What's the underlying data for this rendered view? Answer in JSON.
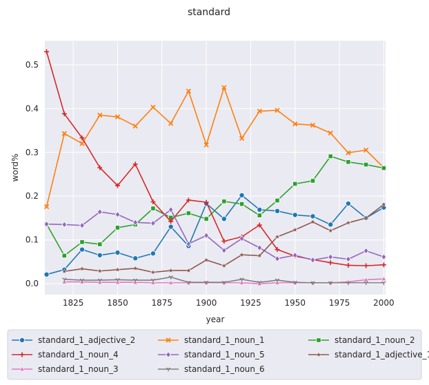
{
  "chart_data": {
    "type": "line",
    "title": "standard",
    "xlabel": "year",
    "ylabel": "word%",
    "xlim": [
      1809,
      2001
    ],
    "ylim": [
      -0.025,
      0.555
    ],
    "xticks": [
      1825,
      1850,
      1875,
      1900,
      1925,
      1950,
      1975,
      2000
    ],
    "yticks": [
      0.0,
      0.1,
      0.2,
      0.3,
      0.4,
      0.5
    ],
    "ytick_labels": [
      "0.0",
      "0.1",
      "0.2",
      "0.3",
      "0.4",
      "0.5"
    ],
    "grid": true,
    "legend_placement": "bottom",
    "series": [
      {
        "name": "standard_1_adjective_2",
        "color": "#1f77b4",
        "marker": "circle",
        "x": [
          1810,
          1820,
          1830,
          1840,
          1850,
          1860,
          1870,
          1880,
          1890,
          1900,
          1910,
          1920,
          1930,
          1940,
          1950,
          1960,
          1970,
          1980,
          1990,
          2000
        ],
        "y": [
          0.021,
          0.032,
          0.078,
          0.065,
          0.071,
          0.058,
          0.069,
          0.13,
          0.086,
          0.183,
          0.148,
          0.202,
          0.169,
          0.166,
          0.157,
          0.154,
          0.135,
          0.183,
          0.15,
          0.174
        ]
      },
      {
        "name": "standard_1_noun_1",
        "color": "#ff7f0e",
        "marker": "x",
        "x": [
          1810,
          1820,
          1830,
          1840,
          1850,
          1860,
          1870,
          1880,
          1890,
          1900,
          1910,
          1920,
          1930,
          1940,
          1950,
          1960,
          1970,
          1980,
          1990,
          2000
        ],
        "y": [
          0.176,
          0.343,
          0.32,
          0.385,
          0.381,
          0.36,
          0.403,
          0.366,
          0.44,
          0.317,
          0.448,
          0.332,
          0.394,
          0.396,
          0.365,
          0.362,
          0.344,
          0.299,
          0.305,
          0.265
        ]
      },
      {
        "name": "standard_1_noun_2",
        "color": "#2ca02c",
        "marker": "square",
        "x": [
          1810,
          1820,
          1830,
          1840,
          1850,
          1860,
          1870,
          1880,
          1890,
          1900,
          1910,
          1920,
          1930,
          1940,
          1950,
          1960,
          1970,
          1980,
          1990,
          2000
        ],
        "y": [
          0.136,
          0.064,
          0.095,
          0.09,
          0.128,
          0.135,
          0.172,
          0.151,
          0.161,
          0.148,
          0.188,
          0.182,
          0.156,
          0.19,
          0.228,
          0.235,
          0.291,
          0.278,
          0.272,
          0.264
        ]
      },
      {
        "name": "standard_1_noun_4",
        "color": "#d62728",
        "marker": "plus",
        "x": [
          1810,
          1820,
          1830,
          1840,
          1850,
          1860,
          1870,
          1880,
          1890,
          1900,
          1910,
          1920,
          1930,
          1940,
          1950,
          1960,
          1970,
          1980,
          1990,
          2000
        ],
        "y": [
          0.53,
          0.388,
          0.333,
          0.265,
          0.224,
          0.273,
          0.187,
          0.142,
          0.191,
          0.186,
          0.097,
          0.107,
          0.134,
          0.078,
          0.063,
          0.055,
          0.048,
          0.042,
          0.041,
          0.043
        ]
      },
      {
        "name": "standard_1_noun_5",
        "color": "#9467bd",
        "marker": "diamond",
        "x": [
          1810,
          1820,
          1830,
          1840,
          1850,
          1860,
          1870,
          1880,
          1890,
          1900,
          1910,
          1920,
          1930,
          1940,
          1950,
          1960,
          1970,
          1980,
          1990,
          2000
        ],
        "y": [
          0.136,
          0.135,
          0.133,
          0.164,
          0.158,
          0.14,
          0.138,
          0.169,
          0.091,
          0.11,
          0.076,
          0.103,
          0.082,
          0.057,
          0.065,
          0.054,
          0.061,
          0.056,
          0.075,
          0.061
        ]
      },
      {
        "name": "standard_1_adjective_1",
        "color": "#8c564b",
        "marker": "star",
        "x": [
          1820,
          1830,
          1840,
          1850,
          1860,
          1870,
          1880,
          1890,
          1900,
          1910,
          1920,
          1930,
          1940,
          1950,
          1960,
          1970,
          1980,
          1990,
          2000
        ],
        "y": [
          0.028,
          0.034,
          0.029,
          0.032,
          0.035,
          0.026,
          0.03,
          0.03,
          0.054,
          0.041,
          0.066,
          0.064,
          0.107,
          0.123,
          0.141,
          0.121,
          0.139,
          0.15,
          0.181
        ]
      },
      {
        "name": "standard_1_noun_3",
        "color": "#e377c2",
        "marker": "triangle",
        "x": [
          1820,
          1830,
          1840,
          1850,
          1860,
          1870,
          1880,
          1890,
          1900,
          1910,
          1920,
          1930,
          1940,
          1950,
          1960,
          1970,
          1980,
          1990,
          2000
        ],
        "y": [
          0.004,
          0.004,
          0.003,
          0.003,
          0.003,
          0.002,
          0.002,
          0.002,
          0.002,
          0.002,
          0.002,
          0.0,
          0.002,
          0.002,
          0.002,
          0.002,
          0.004,
          0.009,
          0.011
        ]
      },
      {
        "name": "standard_1_noun_6",
        "color": "#7f7f7f",
        "marker": "tri",
        "x": [
          1820,
          1830,
          1840,
          1850,
          1860,
          1870,
          1880,
          1890,
          1900,
          1910,
          1920,
          1930,
          1940,
          1950,
          1960,
          1970,
          1980,
          1990,
          2000
        ],
        "y": [
          0.01,
          0.008,
          0.008,
          0.009,
          0.008,
          0.008,
          0.015,
          0.003,
          0.003,
          0.003,
          0.01,
          0.003,
          0.008,
          0.003,
          0.002,
          0.002,
          0.002,
          0.002,
          0.002
        ]
      }
    ],
    "legend_order": [
      "standard_1_adjective_2",
      "standard_1_noun_4",
      "standard_1_noun_3",
      "standard_1_noun_1",
      "standard_1_noun_5",
      "standard_1_noun_6",
      "standard_1_noun_2",
      "standard_1_adjective_1"
    ]
  }
}
